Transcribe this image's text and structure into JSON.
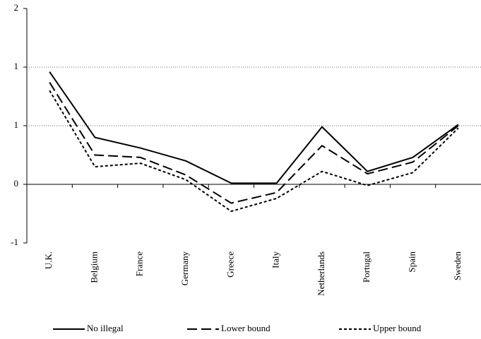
{
  "chart_data": {
    "type": "line",
    "categories": [
      "U.K.",
      "Belgium",
      "France",
      "Germany",
      "Greece",
      "Italy",
      "Netherlands",
      "Portugal",
      "Spain",
      "Sweden"
    ],
    "series": [
      {
        "name": "No illegal",
        "color": "#000000",
        "dash": "solid",
        "values": [
          0.96,
          0.4,
          0.31,
          0.2,
          0.01,
          0.01,
          0.49,
          0.11,
          0.23,
          0.51
        ]
      },
      {
        "name": "Lower bound",
        "color": "#000000",
        "dash": "dashed",
        "values": [
          0.87,
          0.25,
          0.23,
          0.08,
          -0.16,
          -0.07,
          0.33,
          0.09,
          0.19,
          0.5
        ]
      },
      {
        "name": "Upper bound",
        "color": "#000000",
        "dash": "dotted",
        "values": [
          0.8,
          0.15,
          0.18,
          0.04,
          -0.23,
          -0.12,
          0.11,
          -0.01,
          0.1,
          0.48
        ]
      }
    ],
    "ylim": [
      -0.5,
      1.5
    ],
    "yticks": [
      {
        "value": 1.5,
        "label": "2"
      },
      1,
      {
        "value": 0.5,
        "label": "1"
      },
      0,
      {
        "value": -0.5,
        "label": "-1"
      }
    ],
    "grid": true
  }
}
